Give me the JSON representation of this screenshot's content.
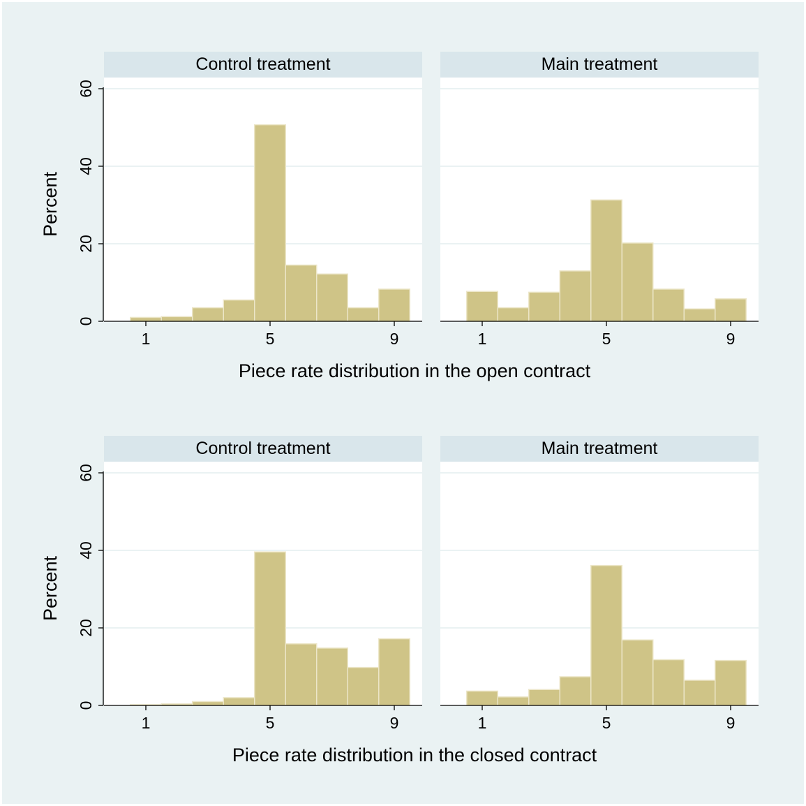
{
  "colors": {
    "background": "#eaf2f3",
    "strip": "#d9e6eb",
    "bar_fill": "#cfc487",
    "bar_outline": "#ece6c8",
    "plot_background": "#ffffff"
  },
  "chart_data": [
    {
      "type": "bar",
      "panel": "top-left",
      "title": "Control treatment",
      "xlabel": "",
      "ylabel": "Percent",
      "categories": [
        1,
        2,
        3,
        4,
        5,
        6,
        7,
        8,
        9
      ],
      "values": [
        1,
        1.2,
        3.5,
        5.5,
        50.7,
        14.5,
        12.2,
        3.5,
        8.3
      ],
      "xticks": [
        1,
        5,
        9
      ],
      "yticks": [
        0,
        20,
        40,
        60
      ],
      "ylim": [
        0,
        60
      ],
      "grid": true
    },
    {
      "type": "bar",
      "panel": "top-right",
      "title": "Main treatment",
      "xlabel": "",
      "ylabel": "",
      "categories": [
        1,
        2,
        3,
        4,
        5,
        6,
        7,
        8,
        9
      ],
      "values": [
        7.7,
        3.5,
        7.5,
        13,
        31.3,
        20.2,
        8.3,
        3.2,
        5.8
      ],
      "xticks": [
        1,
        5,
        9
      ],
      "yticks": [
        0,
        20,
        40,
        60
      ],
      "ylim": [
        0,
        60
      ],
      "grid": true
    },
    {
      "type": "bar",
      "panel": "bottom-left",
      "title": "Control treatment",
      "xlabel": "",
      "ylabel": "Percent",
      "categories": [
        1,
        2,
        3,
        4,
        5,
        6,
        7,
        8,
        9
      ],
      "values": [
        0.2,
        0.4,
        1,
        2,
        39.6,
        15.9,
        14.8,
        9.8,
        17.2
      ],
      "xticks": [
        1,
        5,
        9
      ],
      "yticks": [
        0,
        20,
        40,
        60
      ],
      "ylim": [
        0,
        60
      ],
      "grid": true
    },
    {
      "type": "bar",
      "panel": "bottom-right",
      "title": "Main treatment",
      "xlabel": "",
      "ylabel": "",
      "categories": [
        1,
        2,
        3,
        4,
        5,
        6,
        7,
        8,
        9
      ],
      "values": [
        3.7,
        2.2,
        4.1,
        7.4,
        36.1,
        16.9,
        11.8,
        6.5,
        11.6
      ],
      "xticks": [
        1,
        5,
        9
      ],
      "yticks": [
        0,
        20,
        40,
        60
      ],
      "ylim": [
        0,
        60
      ],
      "grid": true
    }
  ],
  "row_titles": [
    "Piece rate distribution in the open contract",
    "Piece rate distribution in the closed contract"
  ]
}
